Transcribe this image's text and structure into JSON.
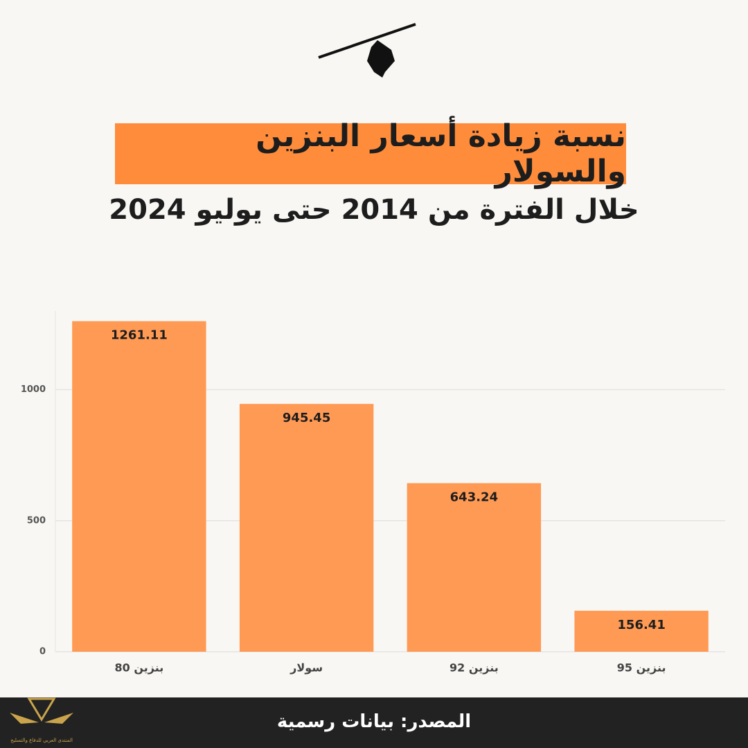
{
  "header": {
    "title": "نسبة زيادة أسعار البنزين والسولار",
    "subtitle": "خلال الفترة من 2014 حتى يوليو 2024"
  },
  "chart_data": {
    "type": "bar",
    "categories": [
      "بنزين 80",
      "سولار",
      "بنزين 92",
      "بنزين 95"
    ],
    "values": [
      1261.11,
      945.45,
      643.24,
      156.41
    ],
    "color": "#ff9a55",
    "ylim": [
      0,
      1300
    ],
    "yticks": [
      0,
      500,
      1000
    ],
    "grid": true
  },
  "footer": {
    "source": "المصدر: بيانات رسمية",
    "logo_text": "المنتدى العربي للدفاع والتسليح"
  }
}
